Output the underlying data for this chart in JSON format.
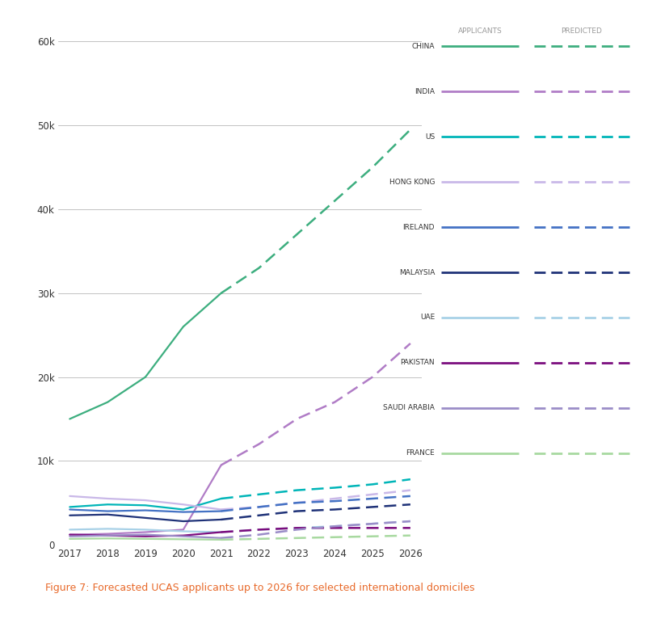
{
  "title": "Figure 7: Forecasted UCAS applicants up to 2026 for selected international domiciles",
  "xlim": [
    2017,
    2026
  ],
  "ylim": [
    0,
    62000
  ],
  "yticks": [
    0,
    10000,
    20000,
    30000,
    40000,
    50000,
    60000
  ],
  "ytick_labels": [
    "0",
    "10k",
    "20k",
    "30k",
    "40k",
    "50k",
    "60k"
  ],
  "xticks": [
    2017,
    2018,
    2019,
    2020,
    2021,
    2022,
    2023,
    2024,
    2025,
    2026
  ],
  "actual_years": [
    2017,
    2018,
    2019,
    2020,
    2021
  ],
  "predicted_years": [
    2021,
    2022,
    2023,
    2024,
    2025,
    2026
  ],
  "countries": [
    "CHINA",
    "INDIA",
    "US",
    "HONG KONG",
    "IRELAND",
    "MALAYSIA",
    "UAE",
    "PAKISTAN",
    "SAUDI ARABIA",
    "FRANCE"
  ],
  "colors": {
    "CHINA": "#3dae7f",
    "INDIA": "#b07cc6",
    "US": "#00b5b8",
    "HONG KONG": "#c9b8e8",
    "IRELAND": "#4472c4",
    "MALAYSIA": "#1f3278",
    "UAE": "#a8d1e7",
    "PAKISTAN": "#7b0d7e",
    "SAUDI ARABIA": "#9b8dc8",
    "FRANCE": "#a8d9a0"
  },
  "actual_data": {
    "CHINA": [
      15000,
      17000,
      20000,
      26000,
      30000
    ],
    "INDIA": [
      1200,
      1300,
      1500,
      1800,
      9500
    ],
    "US": [
      4500,
      4800,
      4700,
      4200,
      5500
    ],
    "HONG KONG": [
      5800,
      5500,
      5300,
      4800,
      4200
    ],
    "IRELAND": [
      4200,
      4000,
      4100,
      3900,
      4000
    ],
    "MALAYSIA": [
      3500,
      3600,
      3200,
      2800,
      3000
    ],
    "UAE": [
      1800,
      1900,
      1800,
      1600,
      1500
    ],
    "PAKISTAN": [
      1200,
      1100,
      1000,
      1100,
      1500
    ],
    "SAUDI ARABIA": [
      1000,
      1100,
      1200,
      1000,
      800
    ],
    "FRANCE": [
      700,
      750,
      700,
      650,
      600
    ]
  },
  "predicted_data": {
    "CHINA": [
      30000,
      33000,
      37000,
      41000,
      45000,
      49500
    ],
    "INDIA": [
      9500,
      12000,
      15000,
      17000,
      20000,
      24000
    ],
    "US": [
      5500,
      6000,
      6500,
      6800,
      7200,
      7800
    ],
    "HONG KONG": [
      4200,
      4500,
      5000,
      5500,
      6000,
      6500
    ],
    "IRELAND": [
      4000,
      4500,
      5000,
      5200,
      5500,
      5800
    ],
    "MALAYSIA": [
      3000,
      3500,
      4000,
      4200,
      4500,
      4800
    ],
    "UAE": [
      1500,
      1800,
      2000,
      2200,
      2500,
      2800
    ],
    "PAKISTAN": [
      1500,
      1800,
      2000,
      2000,
      2000,
      2000
    ],
    "SAUDI ARABIA": [
      800,
      1200,
      1800,
      2200,
      2500,
      2800
    ],
    "FRANCE": [
      600,
      700,
      800,
      900,
      1000,
      1100
    ]
  },
  "background_color": "#ffffff",
  "grid_color": "#aaaaaa",
  "title_color": "#e8692a",
  "legend_header_color": "#999999",
  "legend_label_color": "#333333",
  "tick_color": "#333333"
}
